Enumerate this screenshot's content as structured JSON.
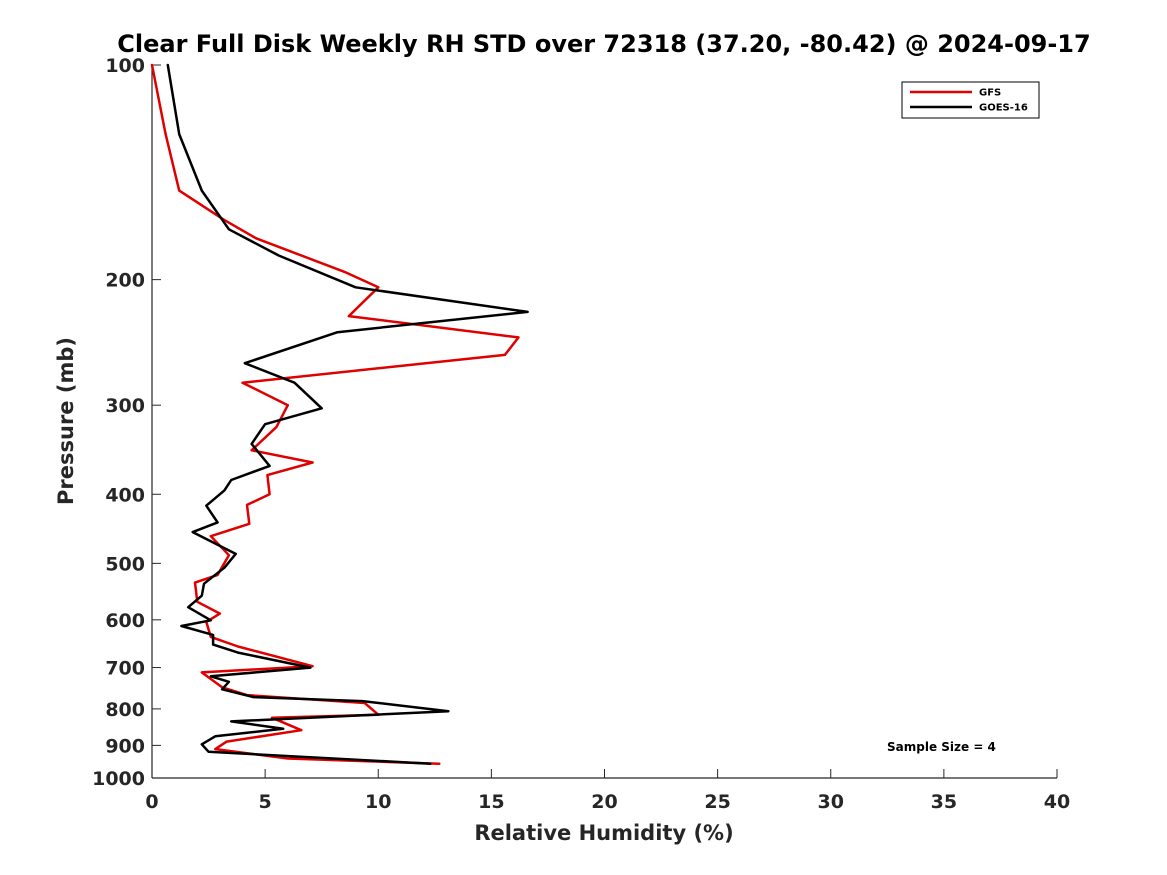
{
  "chart_data": {
    "type": "line",
    "title": "Clear Full Disk Weekly RH STD over 72318 (37.20, -80.42) @ 2024-09-17",
    "xlabel": "Relative Humidity (%)",
    "ylabel": "Pressure (mb)",
    "xlim": [
      0,
      40
    ],
    "ylim": [
      100,
      1000
    ],
    "y_scale": "log",
    "y_reversed": true,
    "x_ticks": [
      0,
      5,
      10,
      15,
      20,
      25,
      30,
      35,
      40
    ],
    "x_tick_labels": [
      "0",
      "5",
      "10",
      "15",
      "20",
      "25",
      "30",
      "35",
      "40"
    ],
    "y_ticks": [
      100,
      200,
      300,
      400,
      500,
      600,
      700,
      800,
      900,
      1000
    ],
    "y_tick_labels": [
      "100",
      "200",
      "300",
      "400",
      "500",
      "600",
      "700",
      "800",
      "900",
      "1000"
    ],
    "grid": false,
    "legend_position": "top-right",
    "annotation": "Sample Size = 4",
    "series": [
      {
        "name": "GFS",
        "color": "#e00000",
        "points": [
          [
            0.0,
            100
          ],
          [
            0.6,
            125
          ],
          [
            1.2,
            150
          ],
          [
            3.2,
            165
          ],
          [
            4.6,
            175
          ],
          [
            8.5,
            195
          ],
          [
            10.0,
            205
          ],
          [
            8.7,
            225
          ],
          [
            16.2,
            241
          ],
          [
            15.6,
            255
          ],
          [
            4.0,
            279
          ],
          [
            6.0,
            300
          ],
          [
            5.5,
            322
          ],
          [
            4.4,
            347
          ],
          [
            7.1,
            361
          ],
          [
            5.1,
            376
          ],
          [
            5.2,
            400
          ],
          [
            4.2,
            414
          ],
          [
            4.3,
            440
          ],
          [
            2.6,
            458
          ],
          [
            3.4,
            487
          ],
          [
            2.9,
            519
          ],
          [
            1.9,
            532
          ],
          [
            2.0,
            566
          ],
          [
            3.0,
            588
          ],
          [
            2.4,
            604
          ],
          [
            2.6,
            634
          ],
          [
            3.8,
            654
          ],
          [
            7.1,
            697
          ],
          [
            2.2,
            711
          ],
          [
            3.1,
            746
          ],
          [
            4.2,
            765
          ],
          [
            9.4,
            785
          ],
          [
            10.0,
            815
          ],
          [
            5.3,
            823
          ],
          [
            6.6,
            857
          ],
          [
            3.3,
            889
          ],
          [
            2.8,
            911
          ],
          [
            6.0,
            939
          ],
          [
            12.7,
            955
          ]
        ]
      },
      {
        "name": "GOES-16",
        "color": "#000000",
        "points": [
          [
            0.7,
            100
          ],
          [
            1.2,
            125
          ],
          [
            2.2,
            150
          ],
          [
            3.4,
            170
          ],
          [
            5.6,
            185
          ],
          [
            9.0,
            205
          ],
          [
            16.6,
            222
          ],
          [
            8.2,
            237
          ],
          [
            4.1,
            262
          ],
          [
            6.3,
            279
          ],
          [
            7.5,
            303
          ],
          [
            5.0,
            319
          ],
          [
            4.4,
            340
          ],
          [
            5.2,
            365
          ],
          [
            3.5,
            382
          ],
          [
            3.2,
            395
          ],
          [
            2.4,
            415
          ],
          [
            2.9,
            438
          ],
          [
            1.8,
            452
          ],
          [
            3.7,
            485
          ],
          [
            3.2,
            507
          ],
          [
            2.3,
            534
          ],
          [
            2.2,
            555
          ],
          [
            1.6,
            576
          ],
          [
            2.6,
            601
          ],
          [
            1.3,
            612
          ],
          [
            2.7,
            630
          ],
          [
            2.7,
            650
          ],
          [
            3.8,
            667
          ],
          [
            7.0,
            700
          ],
          [
            2.6,
            720
          ],
          [
            3.4,
            733
          ],
          [
            3.1,
            751
          ],
          [
            4.5,
            770
          ],
          [
            9.3,
            780
          ],
          [
            13.1,
            806
          ],
          [
            3.5,
            833
          ],
          [
            5.8,
            853
          ],
          [
            2.8,
            874
          ],
          [
            2.2,
            897
          ],
          [
            2.5,
            919
          ],
          [
            12.3,
            955
          ]
        ]
      }
    ]
  }
}
